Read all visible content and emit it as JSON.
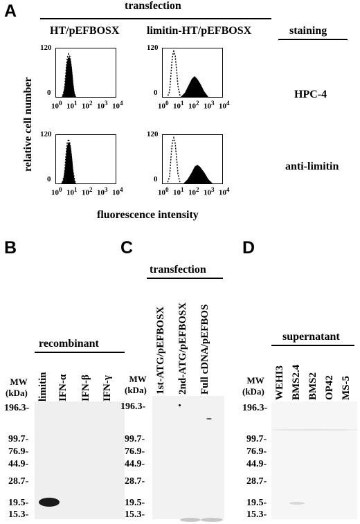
{
  "panel_A": {
    "letter": "A",
    "transfection_header": "transfection",
    "col1": "HT/pEFBOSX",
    "col2": "limitin-HT/pEFBOSX",
    "staining_header": "staining",
    "row1_stain": "HPC-4",
    "row2_stain": "anti-limitin",
    "y_label": "relative cell number",
    "x_label": "fluorescence intensity",
    "y_ticks": [
      "120",
      "0"
    ],
    "x_ticks": [
      "10",
      "10",
      "10",
      "10",
      "10"
    ],
    "x_exps": [
      "0",
      "1",
      "2",
      "3",
      "4"
    ]
  },
  "panel_B": {
    "letter": "B",
    "group_header": "recombinant",
    "lanes": [
      "limitin",
      "IFN-α",
      "IFN-β",
      "IFN-γ"
    ],
    "mw_header": [
      "MW",
      "(kDa)"
    ],
    "mw": [
      "196.3-",
      "99.7-",
      "76.9-",
      "44.9-",
      "28.7-",
      "19.5-",
      "15.3-"
    ]
  },
  "panel_C": {
    "letter": "C",
    "group_header": "transfection",
    "lanes": [
      "1st-ATG/pEFBOSX",
      "2nd-ATG/pEFBOSX",
      "Full cDNA/pEFBOS"
    ],
    "mw_header": [
      "MW",
      "(kDa)"
    ],
    "mw": [
      "196.3-",
      "99.7-",
      "76.9-",
      "44.9-",
      "28.7-",
      "19.5-",
      "15.3-"
    ]
  },
  "panel_D": {
    "letter": "D",
    "group_header": "supernatant",
    "lanes": [
      "WEHI3",
      "BMS2.4",
      "BMS2",
      "OP42",
      "MS-5"
    ],
    "mw_header": [
      "MW",
      "(kDa)"
    ],
    "mw": [
      "196.3-",
      "99.7-",
      "76.9-",
      "44.9-",
      "28.7-",
      "19.5-",
      "15.3-"
    ]
  }
}
